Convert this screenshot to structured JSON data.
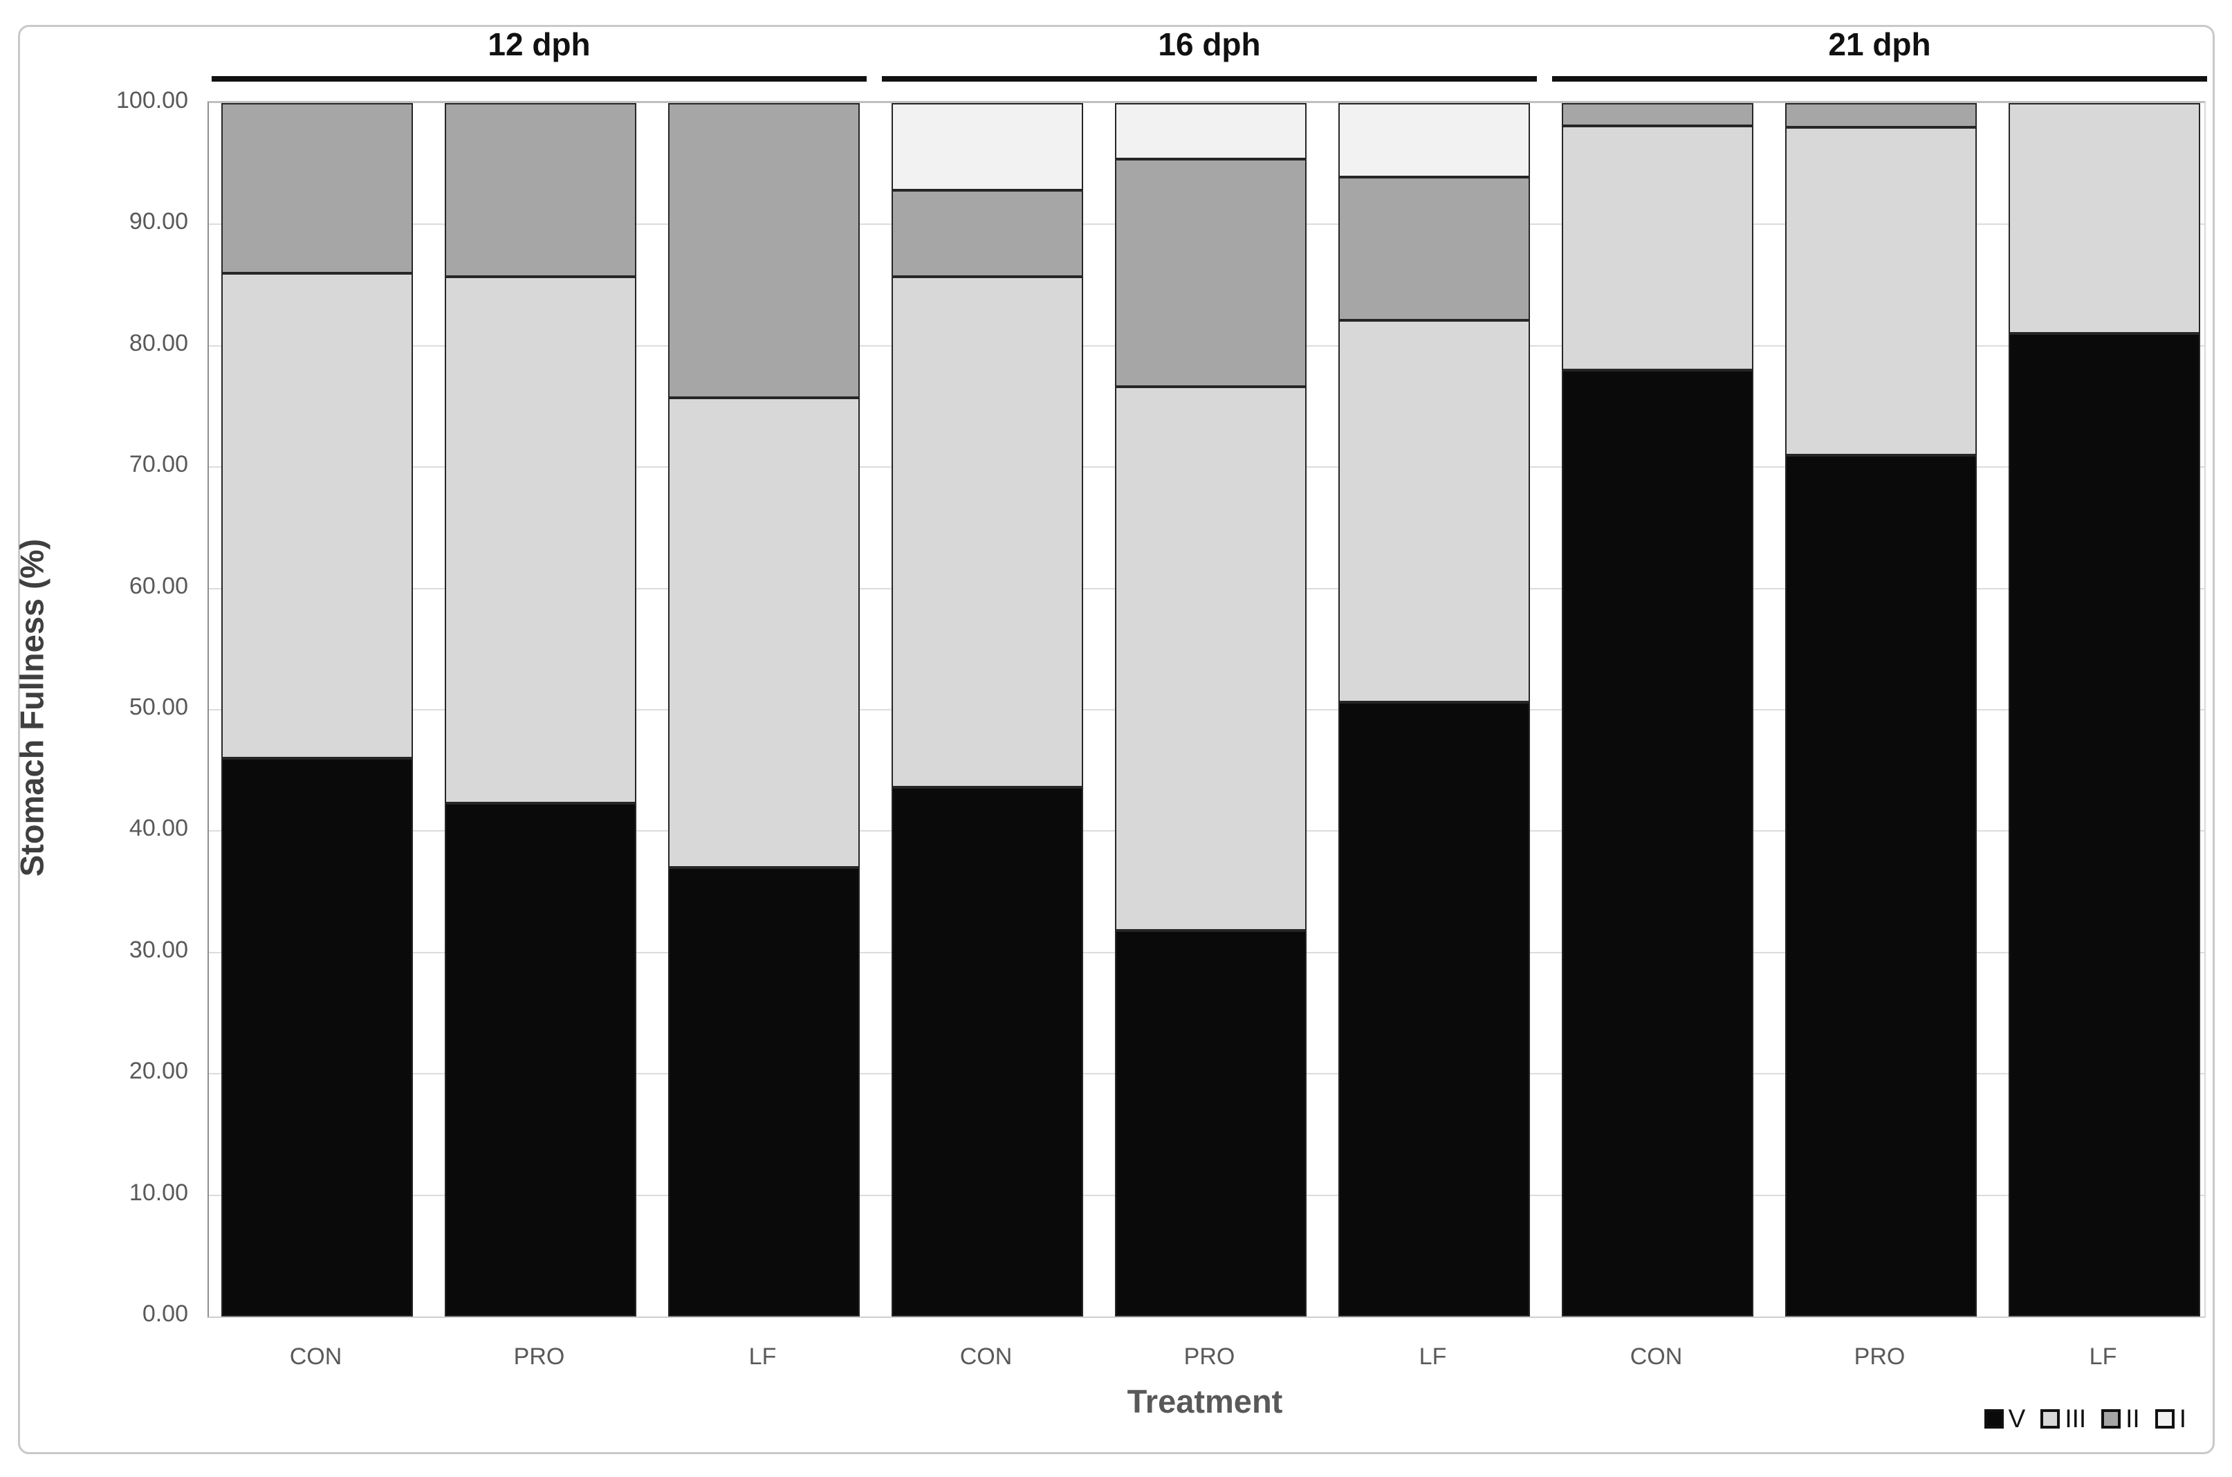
{
  "figure": {
    "y_axis_title": "Stomach Fullness (%)",
    "x_axis_title": "Treatment"
  },
  "chart_data": {
    "type": "bar",
    "stacked": true,
    "title": "",
    "xlabel": "Treatment",
    "ylabel": "Stomach Fullness (%)",
    "ylim": [
      0,
      100
    ],
    "grid": "horizontal",
    "ytick_labels": [
      "0.00",
      "10.00",
      "20.00",
      "30.00",
      "40.00",
      "50.00",
      "60.00",
      "70.00",
      "80.00",
      "90.00",
      "100.00"
    ],
    "group_labels": [
      "12 dph",
      "16 dph",
      "21 dph"
    ],
    "groups": [
      [
        0,
        1,
        2
      ],
      [
        3,
        4,
        5
      ],
      [
        6,
        7,
        8
      ]
    ],
    "categories": [
      "CON",
      "PRO",
      "LF",
      "CON",
      "PRO",
      "LF",
      "CON",
      "PRO",
      "LF"
    ],
    "series": [
      {
        "name": "V",
        "color": "#0a0a0a",
        "values": [
          46.0,
          42.3,
          37.0,
          43.6,
          31.8,
          50.6,
          78.0,
          71.0,
          81.0
        ]
      },
      {
        "name": "III",
        "color": "#d8d8d8",
        "values": [
          40.0,
          43.4,
          38.7,
          42.1,
          44.8,
          31.5,
          20.1,
          27.0,
          19.0
        ]
      },
      {
        "name": "II",
        "color": "#a6a6a6",
        "values": [
          14.0,
          14.3,
          24.3,
          7.1,
          18.8,
          11.8,
          1.9,
          2.0,
          0.0
        ]
      },
      {
        "name": "I",
        "color": "#f2f2f2",
        "values": [
          0.0,
          0.0,
          0.0,
          7.2,
          4.6,
          6.1,
          0.0,
          0.0,
          0.0
        ]
      }
    ],
    "legend_position": "bottom-right",
    "legend_entries": [
      "V",
      "III",
      "II",
      "I"
    ]
  }
}
